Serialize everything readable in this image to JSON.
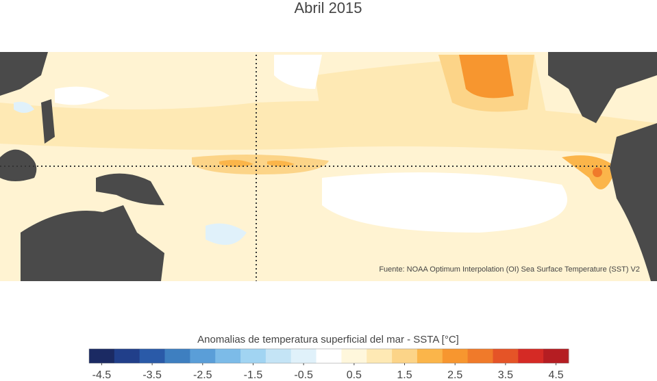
{
  "title": "Abril 2015",
  "source": "Fuente: NOAA Optimum Interpolation (OI) Sea Surface Temperature (SST) V2",
  "colorbar": {
    "label": "Anomalias de temperatura superficial del mar - SSTA  [°C]",
    "lim": [
      -4.75,
      4.75
    ],
    "ticks": [
      -4.5,
      -3.5,
      -2.5,
      -1.5,
      -0.5,
      0.5,
      1.5,
      2.5,
      3.5,
      4.5
    ],
    "colors": [
      "#1b2a63",
      "#213f8a",
      "#2a5aa8",
      "#3e7fc0",
      "#5a9ed8",
      "#7cbbe8",
      "#a1d4f2",
      "#c4e4f6",
      "#e0f1fa",
      "#ffffff",
      "#fff7dc",
      "#fee9b4",
      "#fcd488",
      "#fbb54a",
      "#f7962f",
      "#f07a2a",
      "#e55427",
      "#d52a25",
      "#b51d22"
    ]
  }
}
